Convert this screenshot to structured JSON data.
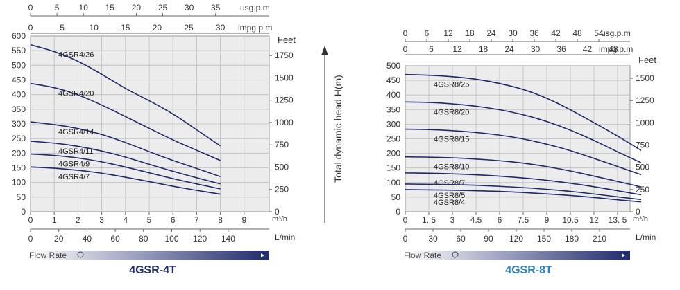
{
  "colors": {
    "curve": "#1f2a6b",
    "grid": "#bdbdbd",
    "panel": "#ececec",
    "text": "#333333",
    "bar_start": "#ffffff",
    "bar_end": "#1f2a6b",
    "title_left": "#1f2a6b",
    "title_right": "#2b7fbd"
  },
  "center_axis_label": "Total dynamic head H(m)",
  "chart_data": [
    {
      "type": "line",
      "title": "4GSR-4T",
      "flow_rate_label": "Flow Rate",
      "xlabel": "m³/h",
      "ylabel_right": "Feet",
      "xlim": [
        0,
        10
      ],
      "ylim": [
        0,
        600
      ],
      "x_ticks": [
        "0",
        "1",
        "2",
        "3",
        "4",
        "5",
        "6",
        "7",
        "8",
        "9"
      ],
      "y_ticks": [
        "0",
        "50",
        "100",
        "150",
        "200",
        "250",
        "300",
        "350",
        "400",
        "450",
        "500",
        "550",
        "600"
      ],
      "feet_ticks": [
        "0",
        "250",
        "500",
        "750",
        "1000",
        "1250",
        "1500",
        "1750"
      ],
      "lmin_label": "L/min",
      "lmin_ticks": [
        "0",
        "20",
        "40",
        "60",
        "80",
        "100",
        "120",
        "140"
      ],
      "usg_label": "usg.p.m",
      "usg_ticks": [
        "0",
        "5",
        "10",
        "15",
        "20",
        "25",
        "30",
        "35"
      ],
      "impg_label": "impg.p.m",
      "impg_ticks": [
        "0",
        "5",
        "10",
        "15",
        "20",
        "25",
        "30"
      ],
      "series": [
        {
          "name": "4GSR4/26",
          "x": [
            0,
            1,
            2,
            3,
            4,
            5,
            6,
            7,
            8
          ],
          "y": [
            570,
            548,
            515,
            470,
            420,
            380,
            335,
            280,
            225
          ]
        },
        {
          "name": "4GSR4/20",
          "x": [
            0,
            1,
            2,
            3,
            4,
            5,
            6,
            7,
            8
          ],
          "y": [
            438,
            425,
            400,
            365,
            325,
            285,
            245,
            210,
            175
          ]
        },
        {
          "name": "4GSR4/14",
          "x": [
            0,
            1,
            2,
            3,
            4,
            5,
            6,
            7,
            8
          ],
          "y": [
            307,
            298,
            285,
            265,
            237,
            205,
            175,
            148,
            120
          ]
        },
        {
          "name": "4GSR4/11",
          "x": [
            0,
            1,
            2,
            3,
            4,
            5,
            6,
            7,
            8
          ],
          "y": [
            241,
            235,
            224,
            208,
            187,
            162,
            138,
            116,
            95
          ]
        },
        {
          "name": "4GSR4/9",
          "x": [
            0,
            1,
            2,
            3,
            4,
            5,
            6,
            7,
            8
          ],
          "y": [
            197,
            193,
            184,
            171,
            153,
            133,
            113,
            95,
            78
          ]
        },
        {
          "name": "4GSR4/7",
          "x": [
            0,
            1,
            2,
            3,
            4,
            5,
            6,
            7,
            8
          ],
          "y": [
            153,
            149,
            142,
            132,
            118,
            103,
            87,
            73,
            60
          ]
        }
      ]
    },
    {
      "type": "line",
      "title": "4GSR-8T",
      "flow_rate_label": "Flow Rate",
      "xlabel": "m³/h",
      "ylabel_right": "Feet",
      "xlim": [
        0,
        15
      ],
      "ylim": [
        0,
        500
      ],
      "x_ticks": [
        "0",
        "1. 5",
        "3",
        "4.5",
        "6",
        "7.5",
        "9",
        "10.5",
        "12",
        "13. 5"
      ],
      "y_ticks": [
        "0",
        "50",
        "100",
        "150",
        "200",
        "250",
        "300",
        "350",
        "400",
        "450",
        "500"
      ],
      "feet_ticks": [
        "0",
        "250",
        "500",
        "750",
        "1000",
        "1250",
        "1500"
      ],
      "lmin_label": "L/min",
      "lmin_ticks": [
        "0",
        "30",
        "60",
        "90",
        "120",
        "150",
        "180",
        "210"
      ],
      "usg_label": "usg.p.m",
      "usg_ticks": [
        "0",
        "6",
        "12",
        "18",
        "24",
        "30",
        "36",
        "42",
        "48",
        "54"
      ],
      "impg_label": "impg.p.m",
      "impg_ticks": [
        "0",
        "6",
        "12",
        "18",
        "24",
        "30",
        "36",
        "42",
        "48"
      ],
      "series": [
        {
          "name": "4GSR8/25",
          "x": [
            0,
            1.5,
            3,
            4.5,
            6,
            7.5,
            9,
            10.5,
            12,
            13.5,
            15
          ],
          "y": [
            470,
            468,
            463,
            455,
            440,
            420,
            390,
            350,
            305,
            260,
            210
          ]
        },
        {
          "name": "4GSR8/20",
          "x": [
            0,
            1.5,
            3,
            4.5,
            6,
            7.5,
            9,
            10.5,
            12,
            13.5,
            15
          ],
          "y": [
            376,
            375,
            370,
            362,
            350,
            333,
            310,
            280,
            245,
            205,
            168
          ]
        },
        {
          "name": "4GSR8/15",
          "x": [
            0,
            1.5,
            3,
            4.5,
            6,
            7.5,
            9,
            10.5,
            12,
            13.5,
            15
          ],
          "y": [
            283,
            282,
            278,
            272,
            263,
            250,
            232,
            210,
            183,
            155,
            127
          ]
        },
        {
          "name": "4GSR8/10",
          "x": [
            0,
            1.5,
            3,
            4.5,
            6,
            7.5,
            9,
            10.5,
            12,
            13.5,
            15
          ],
          "y": [
            188,
            187,
            185,
            181,
            175,
            167,
            155,
            140,
            122,
            104,
            85
          ]
        },
        {
          "name": "4GSR8/7",
          "x": [
            0,
            1.5,
            3,
            4.5,
            6,
            7.5,
            9,
            10.5,
            12,
            13.5,
            15
          ],
          "y": [
            133,
            132,
            130,
            127,
            122,
            116,
            108,
            98,
            86,
            72,
            58
          ]
        },
        {
          "name": "4GSR8/5",
          "x": [
            0,
            1.5,
            3,
            4.5,
            6,
            7.5,
            9,
            10.5,
            12,
            13.5,
            15
          ],
          "y": [
            95,
            94,
            93,
            91,
            87,
            83,
            77,
            70,
            61,
            51,
            42
          ]
        },
        {
          "name": "4GSR8/4",
          "x": [
            0,
            1.5,
            3,
            4.5,
            6,
            7.5,
            9,
            10.5,
            12,
            13.5,
            15
          ],
          "y": [
            76,
            75,
            74,
            72,
            70,
            66,
            61,
            56,
            49,
            41,
            34
          ]
        }
      ]
    }
  ]
}
